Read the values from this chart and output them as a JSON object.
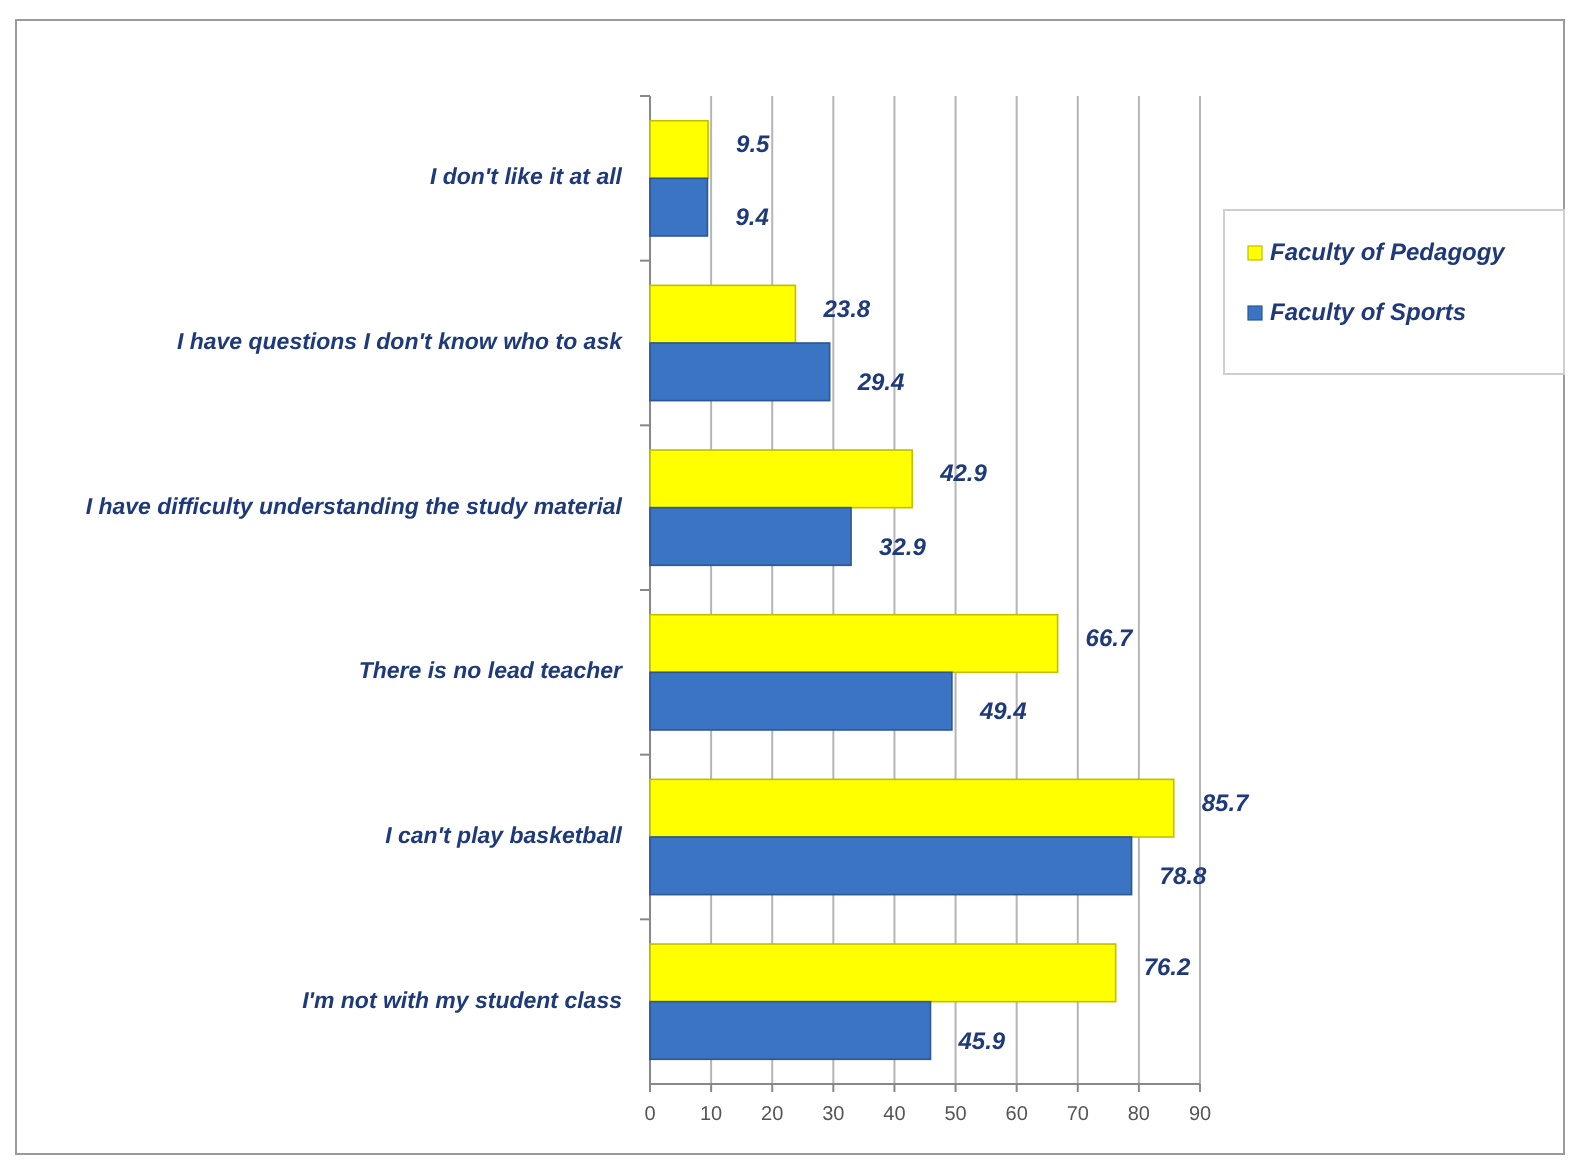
{
  "chart_data": {
    "type": "bar",
    "orientation": "horizontal",
    "categories": [
      "I don't like it at all",
      "I have questions I don't know who to ask",
      "I have difficulty understanding the study material",
      "There is no lead teacher",
      "I can't play basketball",
      "I'm not with my student class"
    ],
    "series": [
      {
        "name": "Faculty of Pedagogy",
        "color": "#ffff00",
        "values": [
          9.5,
          23.8,
          42.9,
          66.7,
          85.7,
          76.2
        ]
      },
      {
        "name": "Faculty of Sports",
        "color": "#3b74c2",
        "values": [
          9.4,
          29.4,
          32.9,
          49.4,
          78.8,
          45.9
        ]
      }
    ],
    "xlim": [
      0,
      90
    ],
    "xticks": [
      0,
      10,
      20,
      30,
      40,
      50,
      60,
      70,
      80,
      90
    ],
    "grid": "x",
    "legend": "right",
    "data_labels": true
  }
}
